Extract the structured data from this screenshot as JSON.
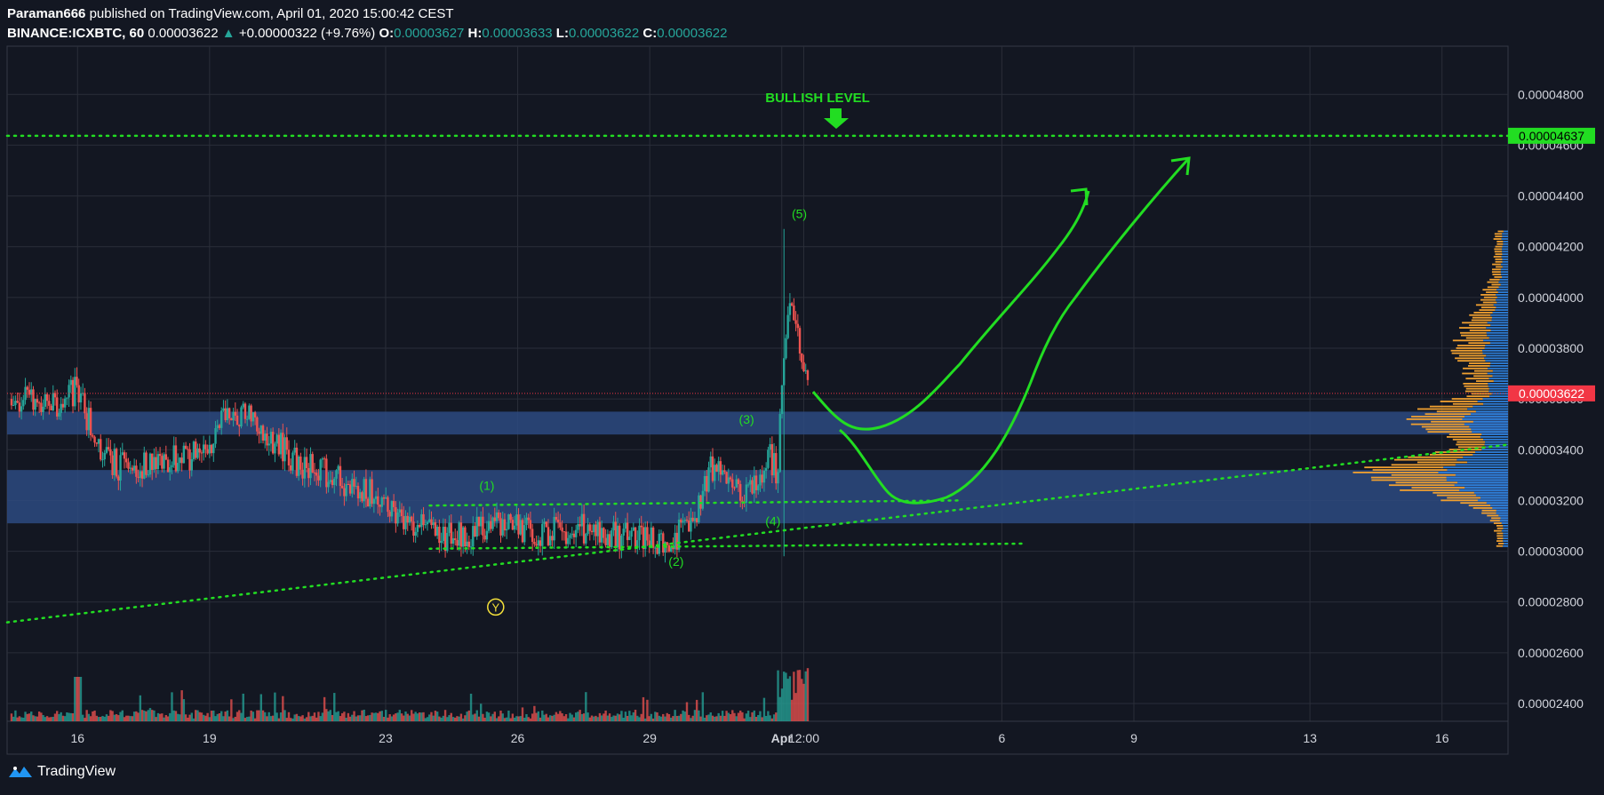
{
  "header": {
    "author": "Paraman666",
    "published_text": "published on TradingView.com, April 01, 2020 15:00:42 CEST",
    "symbol": "BINANCE:ICXBTC, 60",
    "last": "0.00003622",
    "change": "+0.00000322 (+9.76%)",
    "change_arrow": "▲",
    "o_label": "O:",
    "o_value": "0.00003627",
    "h_label": "H:",
    "h_value": "0.00003633",
    "l_label": "L:",
    "l_value": "0.00003622",
    "c_label": "C:",
    "c_value": "0.00003622"
  },
  "footer": {
    "brand": "TradingView",
    "icon": "tradingview-logo-icon"
  },
  "colors": {
    "background": "#131722",
    "grid": "#2a2e39",
    "up": "#26a69a",
    "down": "#ef5350",
    "annotation_green": "#22dd22",
    "zone_blue": "#2d4a80",
    "last_price_red": "#f23645",
    "vp_orange": "#f0a030",
    "vp_blue": "#2e7fd9",
    "wave_label_yellow": "#f5e13a"
  },
  "chart_data": {
    "type": "candlestick",
    "title": "BINANCE:ICXBTC, 60",
    "y_axis": {
      "ylim": [
        2.33e-05,
        4.99e-05
      ],
      "ticks": [
        "0.00004800",
        "0.00004600",
        "0.00004400",
        "0.00004200",
        "0.00004000",
        "0.00003800",
        "0.00003600",
        "0.00003400",
        "0.00003200",
        "0.00003000",
        "0.00002800",
        "0.00002600",
        "0.00002400"
      ],
      "tick_values": [
        4.8e-05,
        4.6e-05,
        4.4e-05,
        4.2e-05,
        4e-05,
        3.8e-05,
        3.6e-05,
        3.4e-05,
        3.2e-05,
        3e-05,
        2.8e-05,
        2.6e-05,
        2.4e-05
      ]
    },
    "x_axis": {
      "ticks": [
        "16",
        "19",
        "23",
        "26",
        "29",
        "Apr",
        "12:00",
        "6",
        "9",
        "13",
        "16"
      ],
      "tick_days": [
        16,
        19,
        23,
        26,
        29,
        32,
        32.5,
        37,
        40,
        44,
        47
      ],
      "xlim": [
        14.4,
        48.5
      ]
    },
    "price_path": [
      {
        "d": 14.5,
        "p": 3.6e-05
      },
      {
        "d": 15.5,
        "p": 3.57e-05
      },
      {
        "d": 16.0,
        "p": 3.64e-05
      },
      {
        "d": 16.5,
        "p": 3.38e-05
      },
      {
        "d": 17.0,
        "p": 3.33e-05
      },
      {
        "d": 18.0,
        "p": 3.35e-05
      },
      {
        "d": 19.0,
        "p": 3.4e-05
      },
      {
        "d": 19.3,
        "p": 3.58e-05
      },
      {
        "d": 20.0,
        "p": 3.52e-05
      },
      {
        "d": 21.0,
        "p": 3.35e-05
      },
      {
        "d": 22.0,
        "p": 3.28e-05
      },
      {
        "d": 23.0,
        "p": 3.2e-05
      },
      {
        "d": 23.5,
        "p": 3.11e-05
      },
      {
        "d": 24.5,
        "p": 3.05e-05
      },
      {
        "d": 25.5,
        "p": 3.1e-05
      },
      {
        "d": 26.5,
        "p": 3.07e-05
      },
      {
        "d": 27.5,
        "p": 3.09e-05
      },
      {
        "d": 28.5,
        "p": 3.06e-05
      },
      {
        "d": 29.5,
        "p": 3.04e-05
      },
      {
        "d": 30.0,
        "p": 3.12e-05
      },
      {
        "d": 30.4,
        "p": 3.33e-05
      },
      {
        "d": 30.8,
        "p": 3.26e-05
      },
      {
        "d": 31.3,
        "p": 3.22e-05
      },
      {
        "d": 31.7,
        "p": 3.38e-05
      },
      {
        "d": 31.9,
        "p": 3.3e-05
      },
      {
        "d": 32.0,
        "p": 3.66e-05
      },
      {
        "d": 32.15,
        "p": 3.98e-05
      },
      {
        "d": 32.4,
        "p": 3.82e-05
      },
      {
        "d": 32.6,
        "p": 3.62e-05
      }
    ],
    "key_prices": {
      "bullish_level": 4.637e-05,
      "last_price": 3.622e-05,
      "spike_high": 4.27e-05,
      "spike_low": 2.98e-05
    },
    "zones": [
      {
        "from": 3.46e-05,
        "to": 3.55e-05
      },
      {
        "from": 3.11e-05,
        "to": 3.32e-05
      }
    ],
    "price_labels": {
      "bullish": "0.00004637",
      "last": "0.00003622"
    },
    "annotations": {
      "bullish_level": "BULLISH LEVEL",
      "waves": [
        "(1)",
        "(2)",
        "(3)",
        "(4)",
        "(5)"
      ],
      "y_label": "Y"
    },
    "wave_points": [
      {
        "label": "(1)",
        "d": 25.3,
        "p": 3.26e-05
      },
      {
        "label": "(2)",
        "d": 29.6,
        "p": 2.96e-05
      },
      {
        "label": "(3)",
        "d": 31.2,
        "p": 3.52e-05
      },
      {
        "label": "(4)",
        "d": 31.8,
        "p": 3.12e-05
      },
      {
        "label": "(5)",
        "d": 32.4,
        "p": 4.33e-05
      }
    ],
    "y_marker": {
      "d": 25.5,
      "p": 2.78e-05
    },
    "trendlines": [
      {
        "from": {
          "d": 14.4,
          "p": 2.72e-05
        },
        "to": {
          "d": 48.5,
          "p": 3.42e-05
        }
      },
      {
        "from": {
          "d": 24.0,
          "p": 3.18e-05
        },
        "to": {
          "d": 36.0,
          "p": 3.2e-05
        }
      },
      {
        "from": {
          "d": 24.0,
          "p": 3.01e-05
        },
        "to": {
          "d": 37.5,
          "p": 3.03e-05
        }
      }
    ]
  }
}
